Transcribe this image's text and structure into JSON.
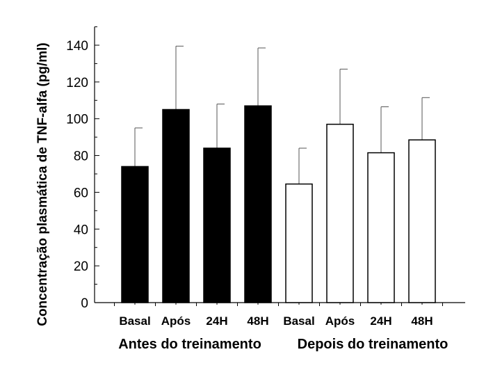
{
  "chart_data": {
    "type": "bar",
    "title": "",
    "ylabel": "Concentração plasmática de TNF-alfa (pg/ml)",
    "ylim": [
      0,
      150
    ],
    "yticks": [
      0,
      20,
      40,
      60,
      80,
      100,
      120,
      140
    ],
    "grid": false,
    "categories": [
      "Basal",
      "Após",
      "24H",
      "48H",
      "Basal",
      "Após",
      "24H",
      "48H"
    ],
    "groups": [
      {
        "label": "Antes do treinamento",
        "fill": "#000000",
        "categories": [
          0,
          1,
          2,
          3
        ]
      },
      {
        "label": "Depois do treinamento",
        "fill": "#ffffff",
        "categories": [
          4,
          5,
          6,
          7
        ]
      }
    ],
    "values": [
      74,
      105,
      84,
      107,
      64.5,
      97,
      81.5,
      88.5
    ],
    "error_upper": [
      95,
      139.5,
      108,
      138.5,
      84,
      127,
      106.5,
      111.5
    ]
  }
}
